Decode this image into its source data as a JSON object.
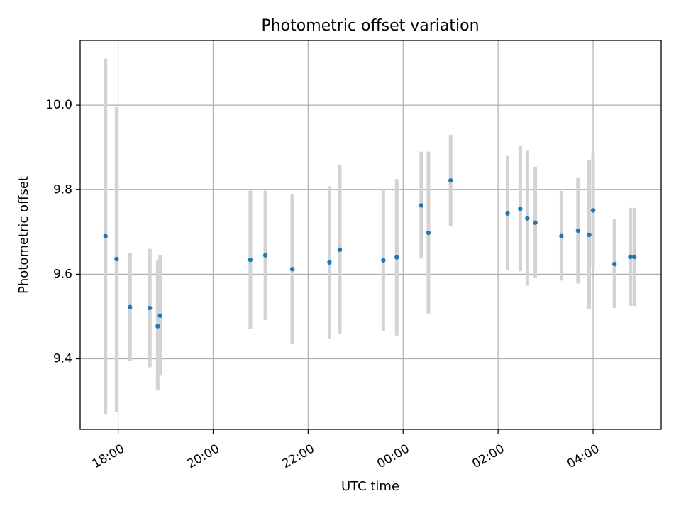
{
  "chart_data": {
    "type": "scatter",
    "title": "Photometric offset variation",
    "xlabel": "UTC time",
    "ylabel": "Photometric offset",
    "x_ticks": [
      "18:00",
      "20:00",
      "22:00",
      "00:00",
      "02:00",
      "04:00"
    ],
    "y_ticks": [
      "9.4",
      "9.6",
      "9.8",
      "10.0"
    ],
    "y_tick_values": [
      9.4,
      9.6,
      9.8,
      10.0
    ],
    "xlim": [
      "17:12",
      "05:26"
    ],
    "ylim": [
      9.233,
      10.153
    ],
    "grid": true,
    "colors": {
      "point": "#1f77b4",
      "errorbar": "#d3d3d3",
      "grid": "#b0b0b0"
    },
    "points": [
      {
        "time": "17:44",
        "offset": 9.69,
        "err_low": 9.27,
        "err_high": 10.11
      },
      {
        "time": "17:58",
        "offset": 9.636,
        "err_low": 9.275,
        "err_high": 9.995
      },
      {
        "time": "18:15",
        "offset": 9.522,
        "err_low": 9.395,
        "err_high": 9.65
      },
      {
        "time": "18:40",
        "offset": 9.52,
        "err_low": 9.38,
        "err_high": 9.66
      },
      {
        "time": "18:50",
        "offset": 9.477,
        "err_low": 9.325,
        "err_high": 9.632
      },
      {
        "time": "18:53",
        "offset": 9.502,
        "err_low": 9.36,
        "err_high": 9.645
      },
      {
        "time": "20:47",
        "offset": 9.634,
        "err_low": 9.47,
        "err_high": 9.798
      },
      {
        "time": "21:06",
        "offset": 9.645,
        "err_low": 9.492,
        "err_high": 9.798
      },
      {
        "time": "21:40",
        "offset": 9.612,
        "err_low": 9.435,
        "err_high": 9.79
      },
      {
        "time": "22:27",
        "offset": 9.628,
        "err_low": 9.448,
        "err_high": 9.808
      },
      {
        "time": "22:40",
        "offset": 9.658,
        "err_low": 9.458,
        "err_high": 9.858
      },
      {
        "time": "23:35",
        "offset": 9.633,
        "err_low": 9.466,
        "err_high": 9.8
      },
      {
        "time": "23:52",
        "offset": 9.64,
        "err_low": 9.455,
        "err_high": 9.825
      },
      {
        "time": "00:23",
        "offset": 9.763,
        "err_low": 9.637,
        "err_high": 9.89
      },
      {
        "time": "00:32",
        "offset": 9.698,
        "err_low": 9.507,
        "err_high": 9.89
      },
      {
        "time": "01:00",
        "offset": 9.822,
        "err_low": 9.713,
        "err_high": 9.93
      },
      {
        "time": "02:12",
        "offset": 9.744,
        "err_low": 9.61,
        "err_high": 9.88
      },
      {
        "time": "02:28",
        "offset": 9.755,
        "err_low": 9.607,
        "err_high": 9.903
      },
      {
        "time": "02:37",
        "offset": 9.732,
        "err_low": 9.573,
        "err_high": 9.892
      },
      {
        "time": "02:47",
        "offset": 9.722,
        "err_low": 9.592,
        "err_high": 9.854
      },
      {
        "time": "03:20",
        "offset": 9.69,
        "err_low": 9.585,
        "err_high": 9.797
      },
      {
        "time": "03:41",
        "offset": 9.703,
        "err_low": 9.578,
        "err_high": 9.828
      },
      {
        "time": "03:55",
        "offset": 9.693,
        "err_low": 9.517,
        "err_high": 9.87
      },
      {
        "time": "04:00",
        "offset": 9.751,
        "err_low": 9.618,
        "err_high": 9.885
      },
      {
        "time": "04:27",
        "offset": 9.624,
        "err_low": 9.52,
        "err_high": 9.73
      },
      {
        "time": "04:47",
        "offset": 9.641,
        "err_low": 9.525,
        "err_high": 9.757
      },
      {
        "time": "04:52",
        "offset": 9.641,
        "err_low": 9.525,
        "err_high": 9.757
      }
    ]
  }
}
